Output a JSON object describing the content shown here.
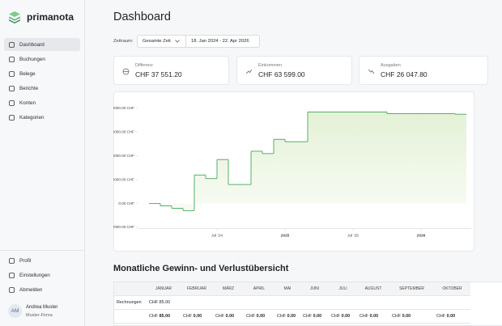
{
  "brand": "primanota",
  "nav": [
    "Dashboard",
    "Buchungen",
    "Belege",
    "Berichte",
    "Konten",
    "Kategorien"
  ],
  "bottom_nav": [
    "Profil",
    "Einstellungen",
    "Abmelden"
  ],
  "user": {
    "initials": "AM",
    "name": "Andrea Muster",
    "company": "Muster-Firma"
  },
  "header": {
    "title": "Dashboard"
  },
  "filter": {
    "label": "Zeitraum:",
    "select": "Gesamte Zeit",
    "range": "18. Jan 2024 - 22. Apr 2026"
  },
  "stats": [
    {
      "label": "Differenz",
      "value": "CHF 37 551.20"
    },
    {
      "label": "Einkommen",
      "value": "CHF 63 599.00"
    },
    {
      "label": "Ausgaben",
      "value": "CHF 26 047.80"
    }
  ],
  "chart_data": {
    "type": "line",
    "step": true,
    "color": "#43a85a",
    "area_color": "#e4f1d6",
    "x": [
      "2024-01",
      "2024-02",
      "2024-03",
      "2024-04",
      "2024-05",
      "2024-06",
      "2024-07",
      "2024-08",
      "2024-09",
      "2024-10",
      "2024-11",
      "2024-12",
      "2025-01",
      "2025-02",
      "2025-03",
      "2025-04",
      "2025-05",
      "2025-06",
      "2025-07",
      "2025-08",
      "2025-09",
      "2025-10",
      "2025-11",
      "2025-12",
      "2026-01",
      "2026-02",
      "2026-03",
      "2026-04"
    ],
    "values": [
      0,
      -1000,
      -2000,
      -3000,
      12000,
      10500,
      18500,
      8000,
      8000,
      22000,
      21000,
      27000,
      26000,
      26000,
      38500,
      38500,
      38500,
      38500,
      38500,
      38500,
      38500,
      37800,
      37800,
      37800,
      37800,
      37800,
      37800,
      37551.2
    ],
    "xlim": [
      "2024-01",
      "2026-05"
    ],
    "xticks": [
      {
        "value": "2024-07",
        "label": "Jul '24"
      },
      {
        "value": "2025-01",
        "label": "2025"
      },
      {
        "value": "2025-07",
        "label": "Jul '25"
      },
      {
        "value": "2026-01",
        "label": "2026"
      }
    ],
    "ylim": [
      -10000,
      40000
    ],
    "yticks": [
      {
        "value": 40000,
        "label": "40000.00 CHF"
      },
      {
        "value": 30000,
        "label": "30000.00 CHF"
      },
      {
        "value": 20000,
        "label": "20000.00 CHF"
      },
      {
        "value": 10000,
        "label": "10000.00 CHF"
      },
      {
        "value": 0,
        "label": "0.00 CHF"
      },
      {
        "value": -10000,
        "label": "-10000.00 CHF"
      }
    ]
  },
  "table": {
    "title": "Monatliche Gewinn- und Verlustübersicht",
    "columns": [
      "JANUAR",
      "FEBRUAR",
      "MÄRZ",
      "APRIL",
      "MAI",
      "JUNI",
      "JULI",
      "AUGUST",
      "SEPTEMBER",
      "OKTOBER"
    ],
    "rows": [
      {
        "label": "Rechnungen",
        "cells": [
          "CHF 85.00"
        ]
      }
    ],
    "totals": [
      {
        "currency": "CHF",
        "amount": "85.00"
      },
      {
        "currency": "CHF",
        "amount": "0.00"
      },
      {
        "currency": "CHF",
        "amount": "0.00"
      },
      {
        "currency": "CHF",
        "amount": "0.00"
      },
      {
        "currency": "CHF",
        "amount": "0.00"
      },
      {
        "currency": "CHF",
        "amount": "0.00"
      },
      {
        "currency": "CHF",
        "amount": "0.00"
      },
      {
        "currency": "CHF",
        "amount": "0.00"
      },
      {
        "currency": "CHF",
        "amount": "0.00"
      },
      {
        "currency": "CHF",
        "amount": "0.00"
      }
    ]
  }
}
